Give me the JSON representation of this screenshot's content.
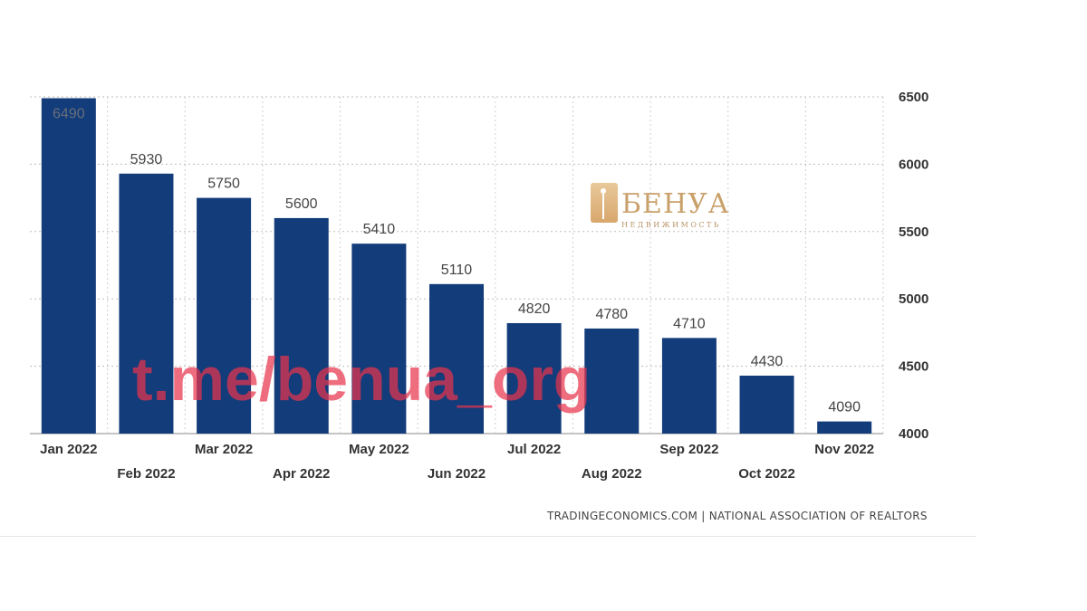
{
  "chart_data": {
    "type": "bar",
    "categories": [
      "Jan 2022",
      "Feb 2022",
      "Mar 2022",
      "Apr 2022",
      "May 2022",
      "Jun 2022",
      "Jul 2022",
      "Aug 2022",
      "Sep 2022",
      "Oct 2022",
      "Nov 2022"
    ],
    "values": [
      6490,
      5930,
      5750,
      5600,
      5410,
      5110,
      4820,
      4780,
      4710,
      4430,
      4090
    ],
    "data_labels": [
      "6490",
      "5930",
      "5750",
      "5600",
      "5410",
      "5110",
      "4820",
      "4780",
      "4710",
      "4430",
      "4090"
    ],
    "y_ticks": [
      4000,
      4500,
      5000,
      5500,
      6000,
      6500
    ],
    "y_tick_labels": [
      "4000",
      "4500",
      "5000",
      "5500",
      "6000",
      "6500"
    ],
    "ylim": [
      4000,
      6500
    ],
    "y_axis_side": "right",
    "grid": true,
    "bar_color": "#123c7a",
    "title": "",
    "xlabel": "",
    "ylabel": ""
  },
  "source_text": "TRADINGECONOMICS.COM  |  NATIONAL ASSOCIATION OF REALTORS",
  "logo": {
    "name": "БЕНУА",
    "subtitle": "НЕДВИЖИМОСТЬ"
  },
  "watermark": {
    "text": "t.me/benua_org"
  }
}
